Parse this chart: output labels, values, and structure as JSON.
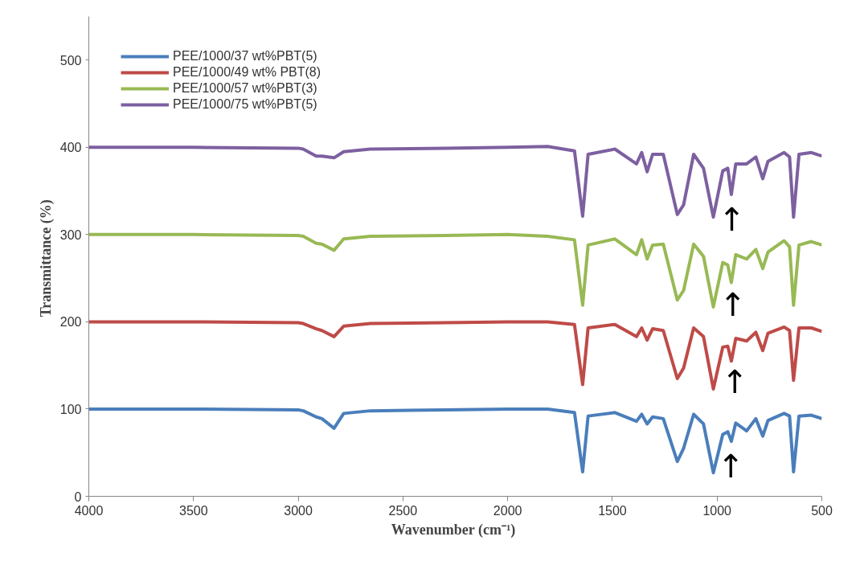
{
  "chart_data": {
    "type": "line",
    "xlabel": "Wavenumber  (cm⁻¹)",
    "ylabel": "Transmittance  (%)",
    "x": [
      4000,
      3500,
      3000,
      2976,
      2914,
      2887,
      2829,
      2783,
      2656,
      2300,
      2000,
      1809,
      1681,
      1642,
      1616,
      1488,
      1385,
      1360,
      1334,
      1308,
      1257,
      1190,
      1160,
      1112,
      1065,
      1018,
      973,
      949,
      932,
      911,
      859,
      815,
      782,
      757,
      680,
      654,
      635,
      609,
      550,
      500
    ],
    "series": [
      {
        "name": "PEE/1000/37 wt%PBT(5)",
        "color": "#4a7ebb",
        "values": [
          100,
          100,
          99,
          98,
          91,
          89,
          78,
          95,
          98,
          99,
          100,
          100,
          96,
          28,
          92,
          96,
          86,
          94,
          83,
          91,
          89,
          40,
          55,
          94,
          83,
          27,
          71,
          74,
          63,
          84,
          75,
          89,
          69,
          87,
          95,
          92,
          28,
          92,
          93,
          89
        ]
      },
      {
        "name": "PEE/1000/49 wt% PBT(8)",
        "color": "#be4b48",
        "values": [
          200,
          200,
          199,
          198,
          192,
          190,
          183,
          195,
          198,
          199,
          200,
          200,
          197,
          128,
          193,
          197,
          183,
          193,
          179,
          192,
          190,
          135,
          147,
          193,
          183,
          123,
          171,
          172,
          155,
          181,
          178,
          188,
          167,
          187,
          194,
          190,
          133,
          193,
          193,
          189
        ]
      },
      {
        "name": "PEE/1000/57 wt%PBT(3)",
        "color": "#98b954",
        "values": [
          300,
          300,
          299,
          298,
          290,
          289,
          282,
          295,
          298,
          299,
          300,
          298,
          294,
          219,
          288,
          295,
          277,
          294,
          272,
          288,
          289,
          225,
          236,
          289,
          275,
          217,
          268,
          265,
          245,
          277,
          272,
          283,
          261,
          280,
          293,
          286,
          219,
          288,
          292,
          288
        ]
      },
      {
        "name": "PEE/1000/75 wt%PBT(5)",
        "color": "#7d60a0",
        "values": [
          400,
          400,
          399,
          398,
          390,
          390,
          388,
          395,
          398,
          399,
          400,
          401,
          396,
          321,
          392,
          398,
          381,
          394,
          372,
          392,
          392,
          323,
          334,
          392,
          376,
          320,
          373,
          376,
          346,
          381,
          381,
          389,
          364,
          384,
          394,
          389,
          320,
          392,
          394,
          390
        ]
      }
    ],
    "annotations": [
      {
        "text": "↑",
        "x": 935,
        "y": 63
      },
      {
        "text": "↑",
        "x": 915,
        "y": 160
      },
      {
        "text": "↑",
        "x": 925,
        "y": 248
      },
      {
        "text": "↑",
        "x": 930,
        "y": 346
      }
    ],
    "xlim": [
      4000,
      500
    ],
    "xticks": [
      4000,
      3500,
      3000,
      2500,
      2000,
      1500,
      1000,
      500
    ],
    "ylim": [
      0,
      550
    ],
    "yticks": [
      0,
      100,
      200,
      300,
      400,
      500
    ],
    "grid": false,
    "legend": "top left",
    "marker": "none",
    "line_style": "solid"
  }
}
